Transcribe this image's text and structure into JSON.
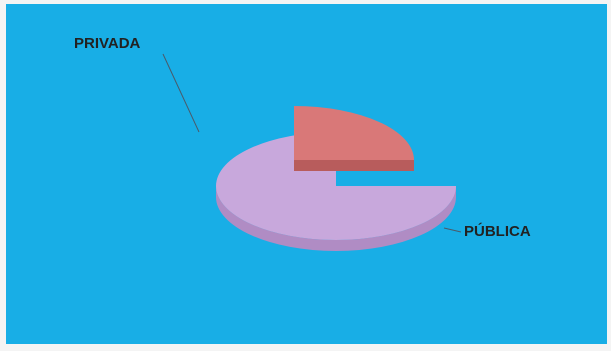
{
  "chart_data": {
    "type": "pie",
    "title": "",
    "slices": [
      {
        "label": "PÚBLICA",
        "value": 75,
        "color": "#c8a8dc",
        "side": "#b08cc4"
      },
      {
        "label": "PRIVADA",
        "value": 25,
        "color": "#d97878",
        "side": "#b85c5c"
      }
    ],
    "style": "3d-exploded",
    "background": "#18aee6"
  }
}
